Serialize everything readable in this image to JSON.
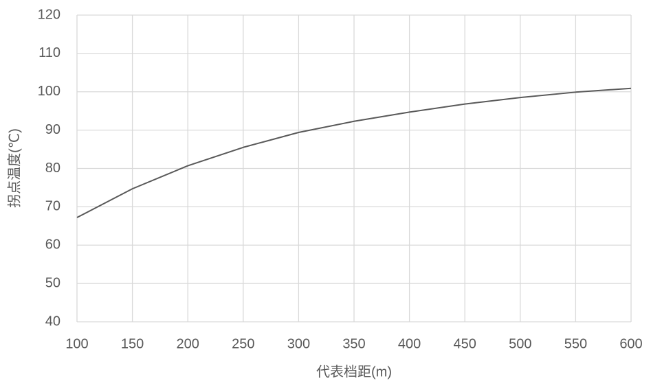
{
  "chart_data": {
    "type": "line",
    "x_label": "代表档距(m)",
    "y_label": "拐点温度(℃)",
    "x": [
      100,
      150,
      200,
      250,
      300,
      350,
      400,
      450,
      500,
      550,
      600
    ],
    "series": [
      {
        "color": "#595959",
        "values": [
          67.2,
          74.7,
          80.7,
          85.5,
          89.4,
          92.3,
          94.7,
          96.8,
          98.5,
          99.9,
          100.9
        ]
      }
    ],
    "xlim": [
      100,
      600
    ],
    "xticks": [
      100,
      150,
      200,
      250,
      300,
      350,
      400,
      450,
      500,
      550,
      600
    ],
    "ylim": [
      40,
      120
    ],
    "yticks": [
      40,
      50,
      60,
      70,
      80,
      90,
      100,
      110,
      120
    ],
    "grid": true
  }
}
